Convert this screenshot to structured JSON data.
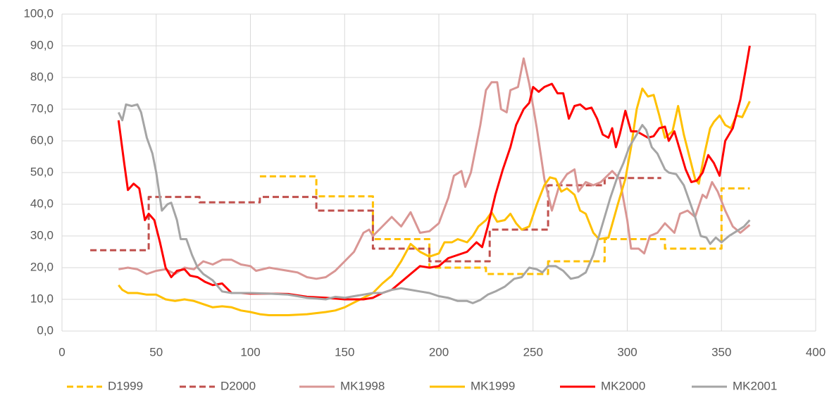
{
  "chart_data": {
    "type": "line",
    "xlim": [
      0,
      400
    ],
    "xticks": [
      0,
      50,
      100,
      150,
      200,
      250,
      300,
      350,
      400
    ],
    "ylim": [
      0,
      100
    ],
    "yticks": [
      {
        "value": 0,
        "label": "0,0"
      },
      {
        "value": 10,
        "label": "10,0"
      },
      {
        "value": 20,
        "label": "20,0"
      },
      {
        "value": 30,
        "label": "30,0"
      },
      {
        "value": 40,
        "label": "40,0"
      },
      {
        "value": 50,
        "label": "50,0"
      },
      {
        "value": 60,
        "label": "60,0"
      },
      {
        "value": 70,
        "label": "70,0"
      },
      {
        "value": 80,
        "label": "80,0"
      },
      {
        "value": 90,
        "label": "90,0"
      },
      {
        "value": 100,
        "label": "100,0"
      }
    ],
    "grid": true,
    "legend": "bottom",
    "series": [
      {
        "name": "D1999",
        "color": "#FFC000",
        "dashed": true,
        "x": [
          105,
          135,
          135,
          165,
          165,
          195,
          195,
          225,
          225,
          258,
          258,
          288,
          288,
          320,
          320,
          350,
          350,
          365
        ],
        "values": [
          48.8,
          48.8,
          42.5,
          42.5,
          29,
          29,
          20,
          20,
          18,
          18,
          22,
          22,
          29,
          29,
          26,
          26,
          45,
          45
        ]
      },
      {
        "name": "D2000",
        "color": "#C0504D",
        "dashed": true,
        "x": [
          15,
          46,
          46,
          73,
          73,
          105,
          105,
          135,
          135,
          165,
          165,
          195,
          195,
          227,
          227,
          258,
          258,
          288,
          288,
          318
        ],
        "values": [
          25.5,
          25.5,
          42.3,
          42.3,
          40.6,
          40.6,
          42.3,
          42.3,
          38,
          38,
          26,
          26,
          22,
          22,
          32,
          32,
          46,
          46,
          48.3,
          48.3
        ]
      },
      {
        "name": "MK1998",
        "color": "#D99694",
        "dashed": false,
        "x": [
          30,
          35,
          40,
          45,
          50,
          55,
          60,
          65,
          70,
          75,
          80,
          85,
          90,
          95,
          100,
          103,
          110,
          115,
          120,
          125,
          130,
          135,
          140,
          145,
          150,
          155,
          160,
          163,
          165,
          170,
          175,
          180,
          185,
          190,
          195,
          200,
          205,
          208,
          212,
          214,
          217,
          222,
          225,
          228,
          231,
          233,
          236,
          238,
          242,
          245,
          248,
          252,
          256,
          260,
          264,
          268,
          272,
          274,
          278,
          282,
          286,
          292,
          296,
          300,
          302,
          306,
          309,
          312,
          316,
          320,
          325,
          328,
          332,
          336,
          340,
          342,
          345,
          348,
          352,
          356,
          360,
          365
        ],
        "values": [
          19.5,
          20,
          19.5,
          18,
          19,
          19.5,
          18,
          20,
          19.5,
          22,
          21,
          22.5,
          22.5,
          21,
          20.5,
          19,
          20,
          19.5,
          19,
          18.5,
          17,
          16.5,
          17,
          19,
          22,
          25,
          31,
          32,
          30,
          33,
          36,
          33,
          37.5,
          31,
          31.5,
          34,
          42,
          49,
          50.5,
          45.5,
          50,
          65,
          76,
          78.5,
          78.5,
          70,
          69,
          76,
          77,
          86,
          78,
          64,
          48,
          38,
          46,
          49.5,
          51,
          44,
          47,
          46,
          47,
          50.5,
          48,
          35,
          26,
          26,
          24.5,
          30,
          31,
          34,
          31,
          37,
          38,
          36,
          43,
          42,
          47,
          44,
          38,
          33,
          31,
          33.5
        ]
      },
      {
        "name": "MK1999",
        "color": "#FFC000",
        "dashed": false,
        "x": [
          30,
          32,
          35,
          40,
          45,
          50,
          55,
          60,
          65,
          70,
          75,
          80,
          85,
          90,
          95,
          100,
          105,
          110,
          120,
          130,
          140,
          145,
          150,
          155,
          160,
          165,
          170,
          175,
          180,
          185,
          190,
          195,
          200,
          203,
          207,
          210,
          215,
          218,
          221,
          225,
          228,
          231,
          235,
          238,
          241,
          244,
          248,
          252,
          256,
          259,
          262,
          265,
          268,
          272,
          275,
          278,
          282,
          285,
          290,
          295,
          299,
          302,
          305,
          308,
          311,
          314,
          317,
          320,
          324,
          327,
          330,
          333,
          336,
          338,
          341,
          344,
          346,
          349,
          352,
          355,
          358,
          361,
          365
        ],
        "values": [
          14.5,
          13,
          12,
          12,
          11.5,
          11.5,
          10,
          9.5,
          10,
          9.5,
          8.5,
          7.5,
          7.8,
          7.5,
          6.5,
          6,
          5.3,
          5,
          5,
          5.3,
          6,
          6.5,
          7.5,
          9,
          10.5,
          12,
          15,
          17.5,
          22,
          27.5,
          25,
          23.5,
          24.5,
          28,
          28,
          29,
          28,
          30,
          33,
          35,
          37.5,
          34.5,
          35,
          37,
          34,
          32,
          33,
          40,
          46,
          48.5,
          48,
          44,
          45,
          43,
          38,
          37,
          31,
          29,
          29.5,
          40,
          48,
          58,
          70,
          76.5,
          74,
          74.5,
          68,
          61,
          63,
          71,
          62,
          55,
          48,
          46.5,
          56,
          64,
          66,
          68,
          65,
          64,
          68,
          67.5,
          72.5
        ]
      },
      {
        "name": "MK2000",
        "color": "#FF0000",
        "dashed": false,
        "x": [
          30,
          33,
          35,
          38,
          41,
          44,
          46,
          49,
          52,
          55,
          58,
          61,
          65,
          68,
          72,
          76,
          80,
          85,
          90,
          95,
          100,
          110,
          120,
          130,
          140,
          150,
          160,
          165,
          170,
          175,
          180,
          185,
          190,
          195,
          200,
          205,
          210,
          215,
          220,
          223,
          226,
          230,
          234,
          238,
          241,
          245,
          248,
          250,
          253,
          256,
          260,
          263,
          266,
          269,
          272,
          275,
          278,
          281,
          284,
          287,
          290,
          292,
          294,
          296,
          299,
          302,
          305,
          308,
          311,
          314,
          317,
          320,
          322,
          325,
          328,
          331,
          334,
          337,
          340,
          343,
          346,
          349,
          352,
          356,
          360,
          363,
          365
        ],
        "values": [
          66.5,
          53,
          44.5,
          46.5,
          45,
          35,
          37,
          35,
          28,
          20,
          17,
          19,
          19.5,
          17.5,
          17,
          15.5,
          14.5,
          15,
          12,
          12,
          11.8,
          11.8,
          11.7,
          10.8,
          10.5,
          10,
          10,
          10.5,
          12,
          13,
          15.5,
          18,
          20.5,
          20,
          20.5,
          23,
          24,
          25,
          28,
          26.5,
          33,
          43,
          51,
          58,
          65,
          70,
          72,
          77,
          75.5,
          77,
          78,
          75,
          75,
          67,
          71,
          71.5,
          70,
          70.5,
          67,
          62,
          61,
          64,
          58,
          62,
          69.5,
          63,
          63,
          62,
          61,
          61.5,
          64,
          64.5,
          60,
          63,
          57,
          51,
          47,
          47.5,
          50,
          55.5,
          53,
          49,
          60,
          64,
          73,
          83,
          90
        ]
      },
      {
        "name": "MK2001",
        "color": "#A5A5A5",
        "dashed": false,
        "x": [
          30,
          32,
          34,
          37,
          40,
          42,
          45,
          48,
          50,
          53,
          56,
          58,
          61,
          63,
          66,
          69,
          72,
          75,
          80,
          85,
          90,
          100,
          110,
          120,
          125,
          130,
          140,
          145,
          150,
          155,
          160,
          165,
          170,
          175,
          180,
          185,
          190,
          195,
          200,
          205,
          210,
          215,
          218,
          222,
          226,
          230,
          235,
          240,
          244,
          248,
          252,
          255,
          258,
          262,
          266,
          270,
          274,
          278,
          282,
          285,
          288,
          291,
          295,
          298,
          301,
          305,
          308,
          310,
          313,
          316,
          320,
          322,
          326,
          330,
          333,
          336,
          339,
          342,
          344,
          347,
          350,
          354,
          358,
          362,
          365
        ],
        "values": [
          69,
          66.5,
          71.5,
          71,
          71.5,
          69,
          61,
          56,
          50,
          38,
          40,
          40.5,
          35,
          29,
          29,
          24,
          20,
          18,
          16,
          12.5,
          12,
          12,
          11.8,
          11.5,
          11,
          10.5,
          10,
          10.8,
          10.5,
          11,
          11.5,
          12,
          12,
          13,
          13.5,
          13,
          12.5,
          12,
          11,
          10.5,
          9.5,
          9.5,
          8.8,
          9.8,
          11.5,
          12.5,
          14,
          16.5,
          17,
          20,
          19.5,
          18.5,
          20.5,
          20.5,
          19,
          16.5,
          17,
          18.5,
          24,
          30,
          36,
          42,
          49,
          53,
          58,
          62,
          65,
          63.5,
          58,
          56,
          51,
          50,
          49.5,
          46,
          41,
          36,
          30,
          29.5,
          27.5,
          29.5,
          28,
          30,
          31.5,
          33,
          35
        ]
      }
    ]
  }
}
